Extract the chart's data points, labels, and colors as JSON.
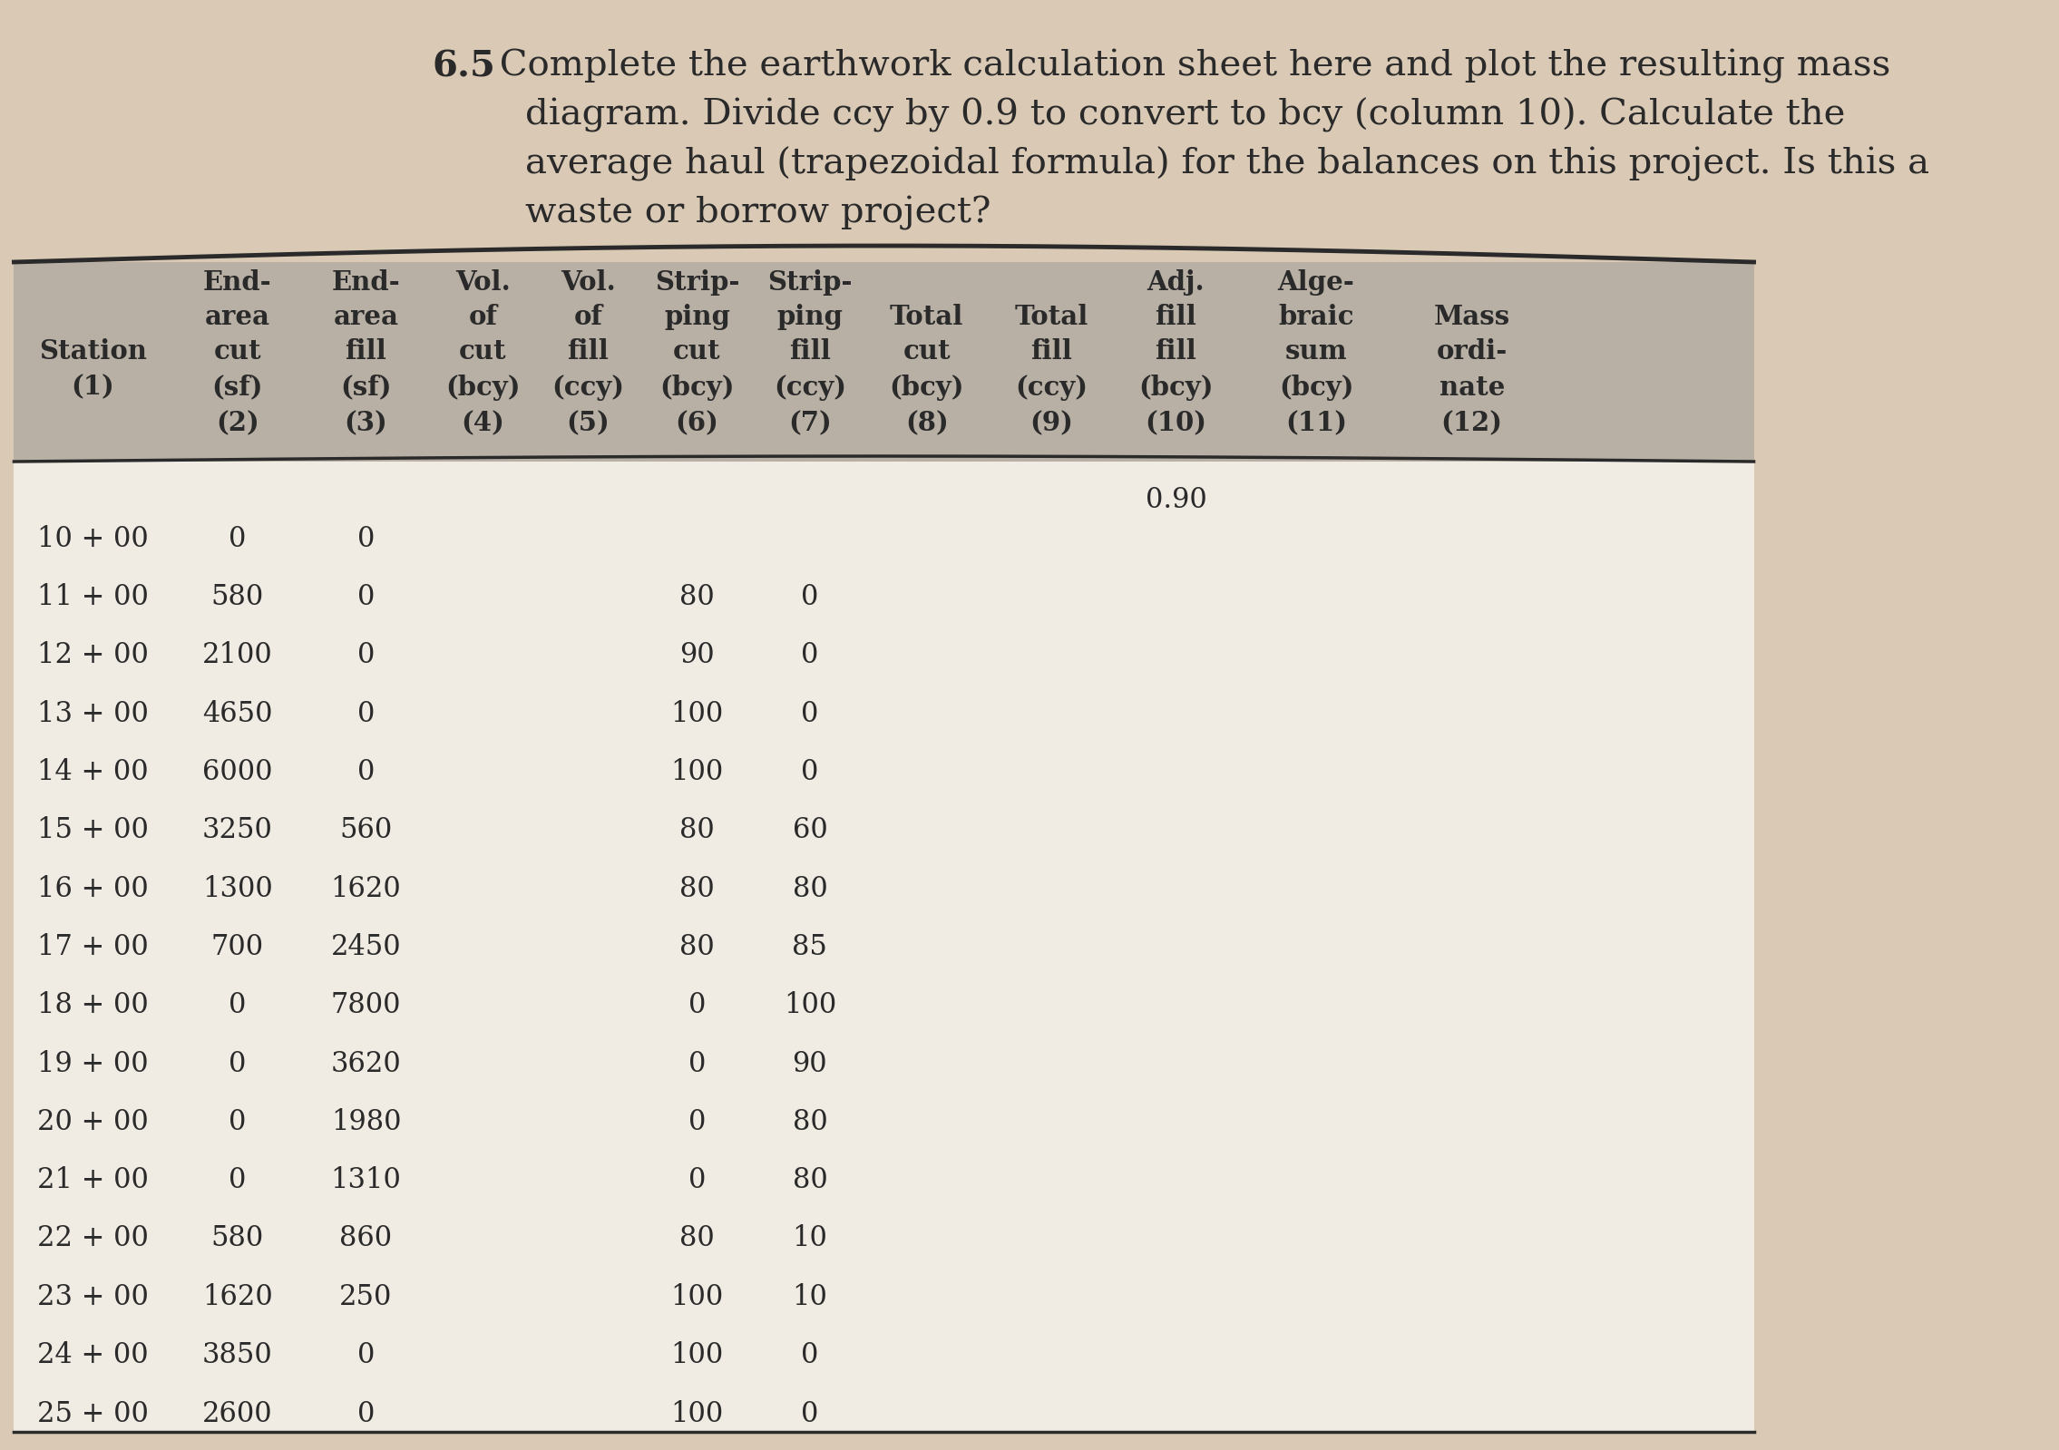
{
  "title_bold": "6.5",
  "title_rest_line1": " Complete the earthwork calculation sheet here and plot the resulting mass",
  "title_line2": "        diagram. Divide ccy by 0.9 to convert to bcy (column 10). Calculate the",
  "title_line3": "        average haul (trapezoidal formula) for the balances on this project. Is this a",
  "title_line4": "        waste or borrow project?",
  "bg_color": "#d9c9b5",
  "header_bg": "#b8b0a4",
  "body_bg": "#f0ebe3",
  "note_0_90": "0.90",
  "col_headers": [
    [
      "",
      "End-\narea\ncut\n(sf)\n(2)",
      "End-\narea\nfill\n(sf)\n(3)",
      "Vol.\nof\ncut\n(bcy)\n(4)",
      "Vol.\nof\nfill\n(ccy)\n(5)",
      "Strip-\nping\ncut\n(bcy)\n(6)",
      "Strip-\nping\nfill\n(ccy)\n(7)",
      "Total\ncut\n(bcy)\n(8)",
      "Total\nfill\n(ccy)\n(9)",
      "Adj.\nfill\n(bcy)\n(10)",
      "Alge-\nbraic\nsum\n(bcy)\n(11)",
      "Mass\nordi-\nnate\n(12)"
    ],
    [
      "Station\n(1)",
      "",
      "",
      "",
      "",
      "",
      "",
      "",
      "",
      "",
      "",
      ""
    ]
  ],
  "header_row1": [
    "",
    "End-",
    "End-",
    "Vol.",
    "Vol.",
    "Strip-",
    "Strip-",
    "",
    "",
    "Adj.",
    "Alge-",
    ""
  ],
  "header_row2": [
    "",
    "area",
    "area",
    "of",
    "of",
    "ping",
    "ping",
    "Total",
    "Total",
    "fill",
    "braic",
    "Mass"
  ],
  "header_row3": [
    "Station",
    "cut",
    "fill",
    "cut",
    "fill",
    "cut",
    "fill",
    "cut",
    "fill",
    "fill",
    "sum",
    "ordi-"
  ],
  "header_row4": [
    "(1)",
    "(sf)",
    "(sf)",
    "(bcy)",
    "(ccy)",
    "(bcy)",
    "(ccy)",
    "(bcy)",
    "(ccy)",
    "(bcy)",
    "(bcy)",
    "nate"
  ],
  "header_row5": [
    "",
    "(2)",
    "(3)",
    "(4)",
    "(5)",
    "(6)",
    "(7)",
    "(8)",
    "(9)",
    "(10)",
    "(11)",
    "(12)"
  ],
  "stations": [
    "10 + 00",
    "11 + 00",
    "12 + 00",
    "13 + 00",
    "14 + 00",
    "15 + 00",
    "16 + 00",
    "17 + 00",
    "18 + 00",
    "19 + 00",
    "20 + 00",
    "21 + 00",
    "22 + 00",
    "23 + 00",
    "24 + 00",
    "25 + 00"
  ],
  "col2": [
    "0",
    "580",
    "2100",
    "4650",
    "6000",
    "3250",
    "1300",
    "700",
    "0",
    "0",
    "0",
    "0",
    "580",
    "1620",
    "3850",
    "2600"
  ],
  "col3": [
    "0",
    "0",
    "0",
    "0",
    "0",
    "560",
    "1620",
    "2450",
    "7800",
    "3620",
    "1980",
    "1310",
    "860",
    "250",
    "0",
    "0"
  ],
  "col4": [
    "",
    "",
    "",
    "",
    "",
    "",
    "",
    "",
    "",
    "",
    "",
    "",
    "",
    "",
    "",
    ""
  ],
  "col5": [
    "",
    "",
    "",
    "",
    "",
    "",
    "",
    "",
    "",
    "",
    "",
    "",
    "",
    "",
    "",
    ""
  ],
  "col6": [
    "",
    "80",
    "90",
    "100",
    "100",
    "80",
    "80",
    "80",
    "0",
    "0",
    "0",
    "0",
    "80",
    "100",
    "100",
    "100"
  ],
  "col7": [
    "",
    "0",
    "0",
    "0",
    "0",
    "60",
    "80",
    "85",
    "100",
    "90",
    "80",
    "80",
    "10",
    "10",
    "0",
    "0"
  ],
  "col8": [
    "",
    "",
    "",
    "",
    "",
    "",
    "",
    "",
    "",
    "",
    "",
    "",
    "",
    "",
    "",
    ""
  ],
  "col9": [
    "",
    "",
    "",
    "",
    "",
    "",
    "",
    "",
    "",
    "",
    "",
    "",
    "",
    "",
    "",
    ""
  ],
  "col10": [
    "",
    "",
    "",
    "",
    "",
    "",
    "",
    "",
    "",
    "",
    "",
    "",
    "",
    "",
    "",
    ""
  ],
  "col11": [
    "",
    "",
    "",
    "",
    "",
    "",
    "",
    "",
    "",
    "",
    "",
    "",
    "",
    "",
    "",
    ""
  ],
  "col12": [
    "",
    "",
    "",
    "",
    "",
    "",
    "",
    "",
    "",
    "",
    "",
    "",
    "",
    "",
    "",
    ""
  ]
}
